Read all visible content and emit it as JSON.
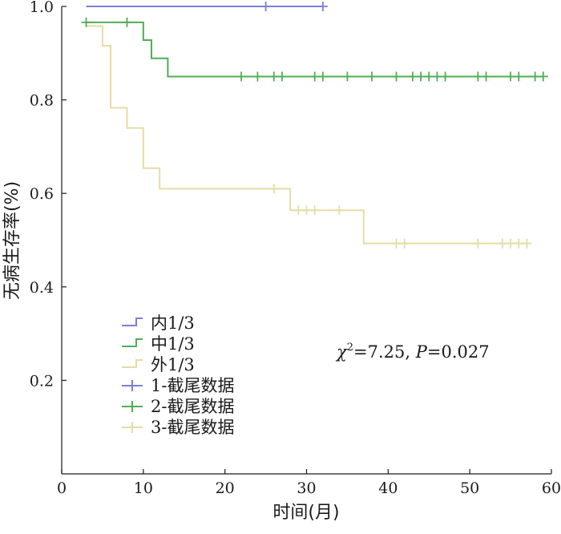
{
  "chart_data": {
    "type": "line",
    "subtype": "kaplan-meier",
    "title": "",
    "xlabel": "时间(月)",
    "ylabel": "无病生存率(%)",
    "xlim": [
      0,
      60
    ],
    "ylim": [
      0,
      1.0
    ],
    "x_ticks": [
      "0",
      "10",
      "20",
      "30",
      "40",
      "50",
      "60"
    ],
    "y_ticks": [
      "0.2",
      "0.4",
      "0.6",
      "0.8",
      "1.0"
    ],
    "grid": false,
    "legend_position": "bottom-left",
    "annotation": {
      "chi_symbol": "χ",
      "chi_superscript": "2",
      "chi_value": "=7.25, ",
      "p_symbol": "P",
      "p_value": "=0.027"
    },
    "series": [
      {
        "name": "内1/3",
        "censor_label": "1-截尾数据",
        "color": "#7a7fd6",
        "steps": [
          [
            3,
            1.0
          ],
          [
            32,
            1.0
          ]
        ],
        "censored": [
          25,
          32
        ]
      },
      {
        "name": "中1/3",
        "censor_label": "2-截尾数据",
        "color": "#4fae55",
        "steps": [
          [
            3,
            0.966
          ],
          [
            10,
            0.928
          ],
          [
            11,
            0.889
          ],
          [
            13,
            0.85
          ],
          [
            59,
            0.85
          ]
        ],
        "censored": [
          3,
          8,
          22,
          24,
          26,
          27,
          31,
          32,
          35,
          38,
          41,
          43,
          44,
          45,
          46,
          47,
          51,
          52,
          55,
          56,
          58,
          59
        ]
      },
      {
        "name": "外1/3",
        "censor_label": "3-截尾数据",
        "color": "#e6dca6",
        "steps": [
          [
            3,
            0.958
          ],
          [
            5,
            0.916
          ],
          [
            6,
            0.783
          ],
          [
            8,
            0.74
          ],
          [
            10,
            0.654
          ],
          [
            12,
            0.61
          ],
          [
            28,
            0.564
          ],
          [
            37,
            0.493
          ],
          [
            57,
            0.493
          ]
        ],
        "censored": [
          26,
          29,
          30,
          31,
          34,
          41,
          42,
          51,
          54,
          55,
          56,
          57
        ]
      }
    ]
  }
}
